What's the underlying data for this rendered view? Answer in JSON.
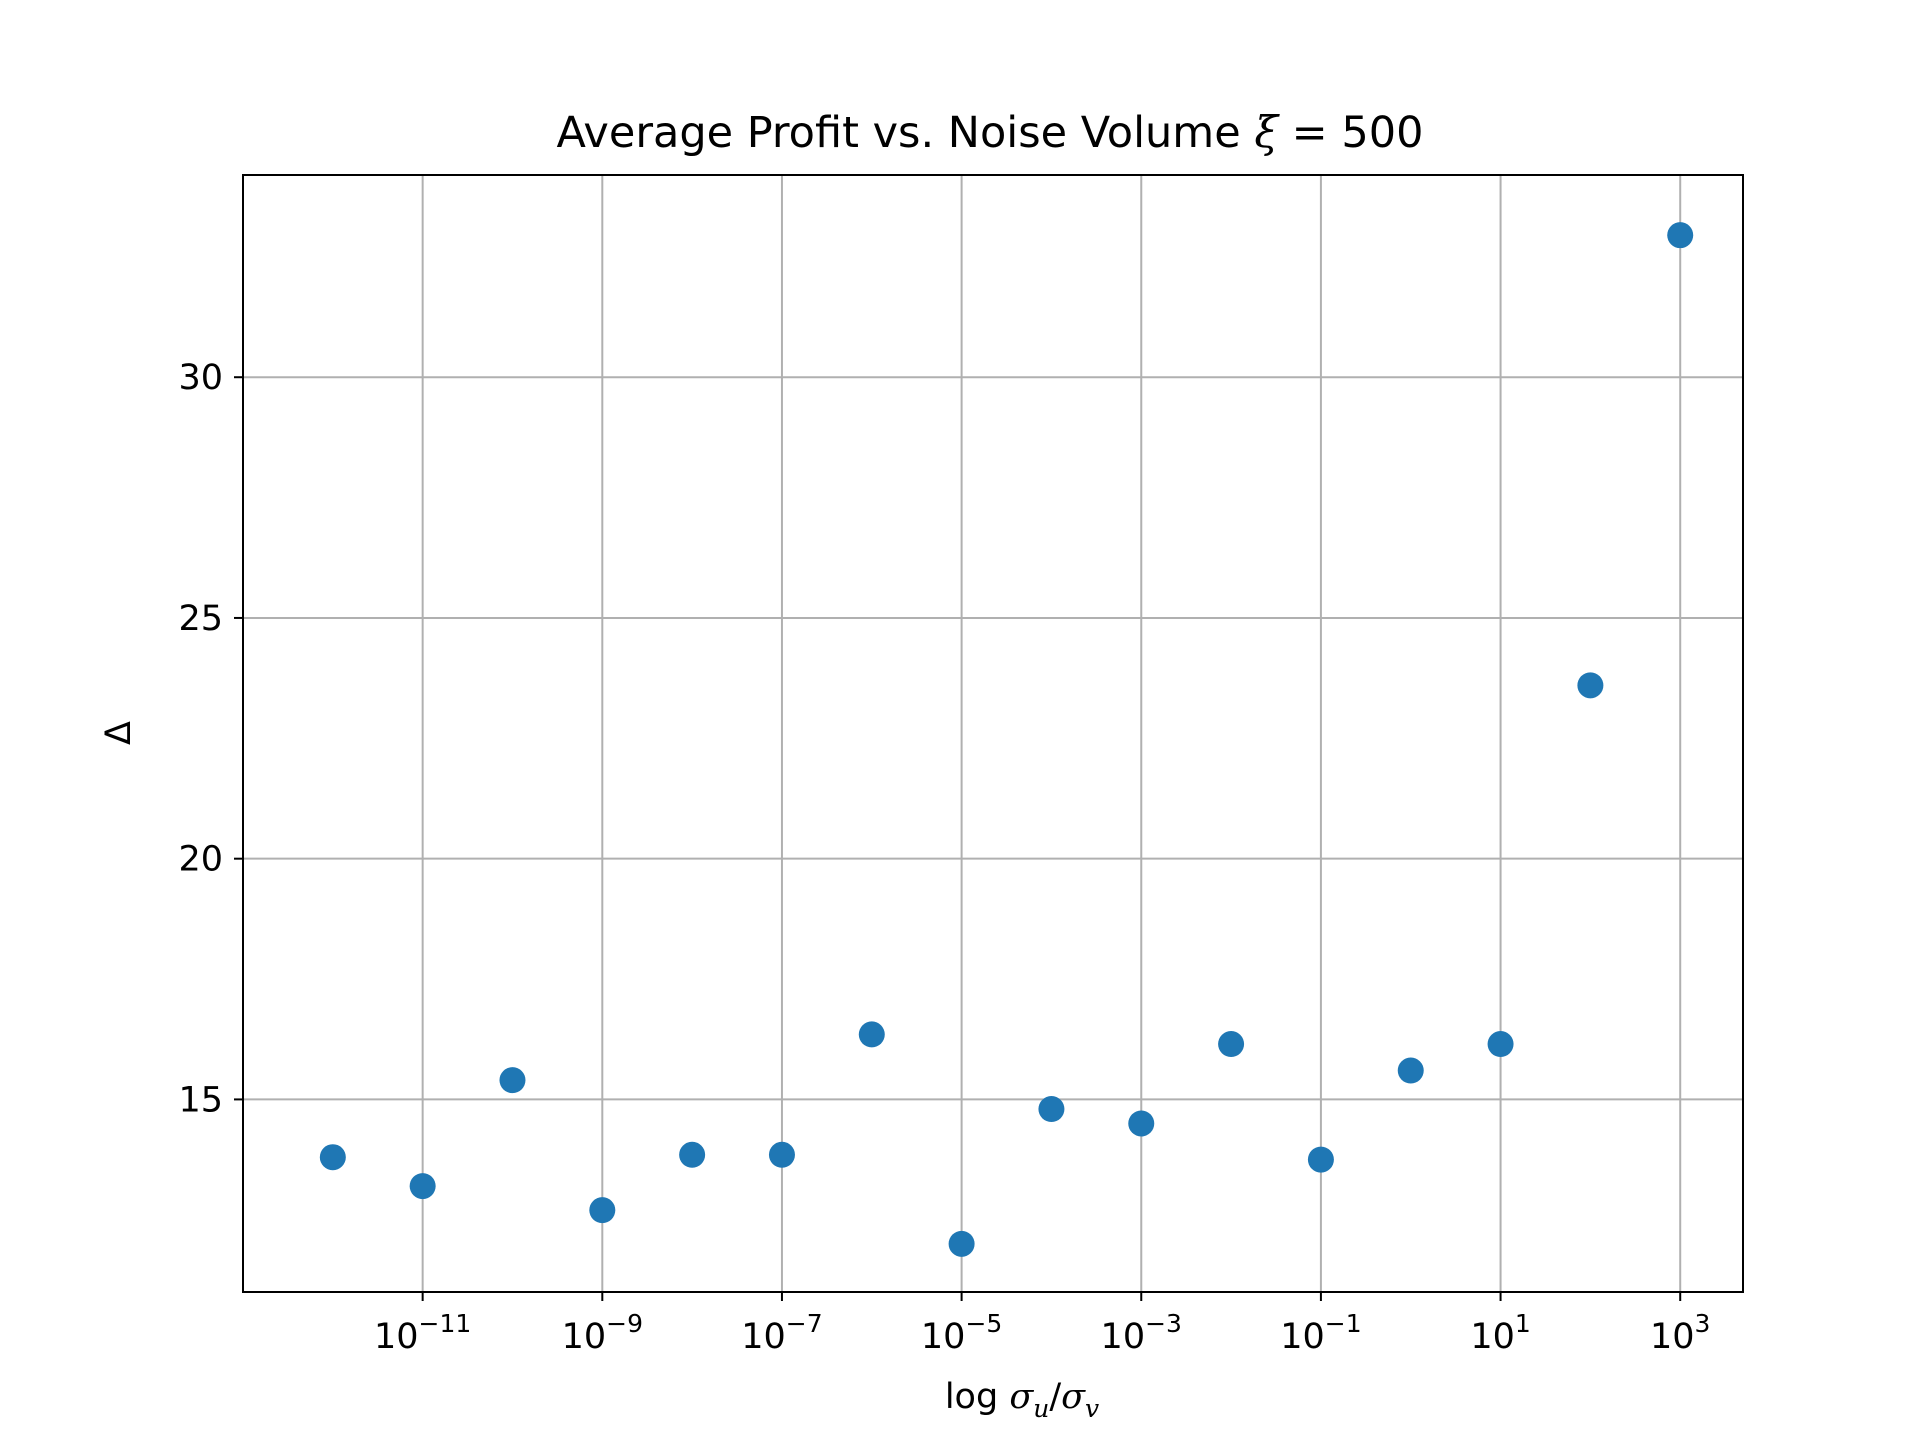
{
  "chart_data": {
    "type": "scatter",
    "title": "Average Profit vs. Noise Volume",
    "title_symbol": "ξ",
    "title_value": " = 500",
    "xlabel": {
      "prefix": "log",
      "numerator": "σ",
      "numerator_sub": "u",
      "slash": "/",
      "denominator": "σ",
      "denominator_sub": "v"
    },
    "ylabel": "Δ",
    "x_scale": "log",
    "xlim": [
      1e-13,
      5000
    ],
    "ylim": [
      11,
      34.2
    ],
    "grid": true,
    "marker_color": "#1f77b4",
    "x_ticks": [
      {
        "value": 1e-11,
        "base": "10",
        "exp": "−11"
      },
      {
        "value": 1e-09,
        "base": "10",
        "exp": "−9"
      },
      {
        "value": 1e-07,
        "base": "10",
        "exp": "−7"
      },
      {
        "value": 1e-05,
        "base": "10",
        "exp": "−5"
      },
      {
        "value": 0.001,
        "base": "10",
        "exp": "−3"
      },
      {
        "value": 0.1,
        "base": "10",
        "exp": "−1"
      },
      {
        "value": 10,
        "base": "10",
        "exp": "1"
      },
      {
        "value": 1000,
        "base": "10",
        "exp": "3"
      }
    ],
    "y_ticks": [
      {
        "value": 15,
        "label": "15"
      },
      {
        "value": 20,
        "label": "20"
      },
      {
        "value": 25,
        "label": "25"
      },
      {
        "value": 30,
        "label": "30"
      }
    ],
    "points": [
      {
        "x": 1e-12,
        "y": 13.8
      },
      {
        "x": 1e-11,
        "y": 13.2
      },
      {
        "x": 1e-10,
        "y": 15.4
      },
      {
        "x": 1e-09,
        "y": 12.7
      },
      {
        "x": 1e-08,
        "y": 13.85
      },
      {
        "x": 1e-07,
        "y": 13.85
      },
      {
        "x": 1e-06,
        "y": 16.35
      },
      {
        "x": 1e-05,
        "y": 12.0
      },
      {
        "x": 0.0001,
        "y": 14.8
      },
      {
        "x": 0.001,
        "y": 14.5
      },
      {
        "x": 0.01,
        "y": 16.15
      },
      {
        "x": 0.1,
        "y": 13.75
      },
      {
        "x": 1,
        "y": 15.6
      },
      {
        "x": 10,
        "y": 16.15
      },
      {
        "x": 100,
        "y": 23.6
      },
      {
        "x": 1000,
        "y": 32.95
      }
    ]
  }
}
